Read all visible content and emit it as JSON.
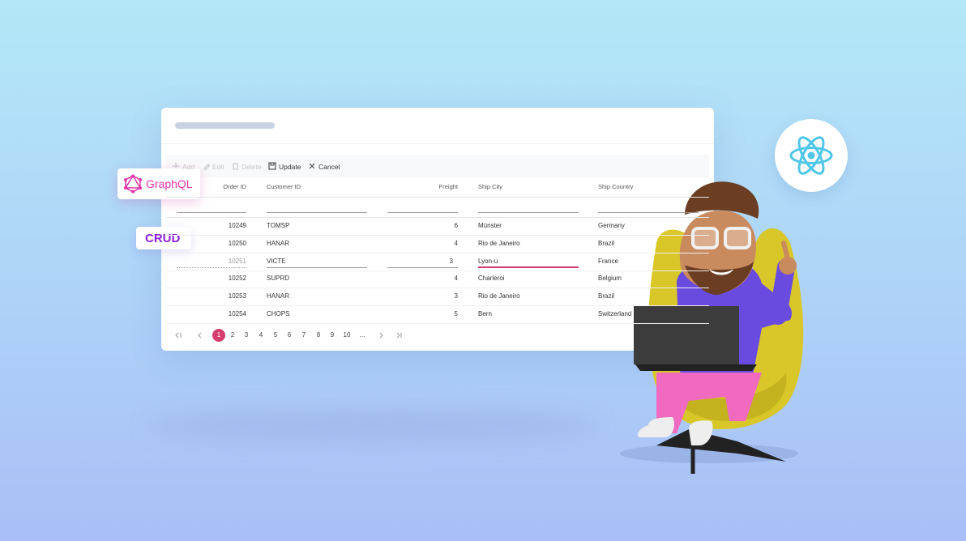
{
  "badges": {
    "graphql": "GraphQL",
    "crud": "CRUD"
  },
  "toolbar": [
    "Add",
    "Edit",
    "Delete",
    "Update",
    "Cancel"
  ],
  "grid": {
    "columns": [
      "Order ID",
      "Customer ID",
      "Freight",
      "Ship City",
      "Ship Country"
    ],
    "rows": [
      [
        "10249",
        "TOMSP",
        "6",
        "Münster",
        "Germany"
      ],
      [
        "10250",
        "HANAR",
        "4",
        "Rio de Janeiro",
        "Brazil"
      ],
      [
        "10251",
        "VICTE",
        "3",
        "Lyon-u",
        "France"
      ],
      [
        "10252",
        "SUPRD",
        "4",
        "Charleroi",
        "Belgium"
      ],
      [
        "10253",
        "HANAR",
        "3",
        "Rio de Janeiro",
        "Brazil"
      ],
      [
        "10254",
        "CHOPS",
        "5",
        "Bern",
        "Switzerland"
      ]
    ]
  },
  "pager": {
    "pages": [
      "1",
      "2",
      "3",
      "4",
      "5",
      "6",
      "7",
      "8",
      "9",
      "10",
      "..."
    ]
  }
}
